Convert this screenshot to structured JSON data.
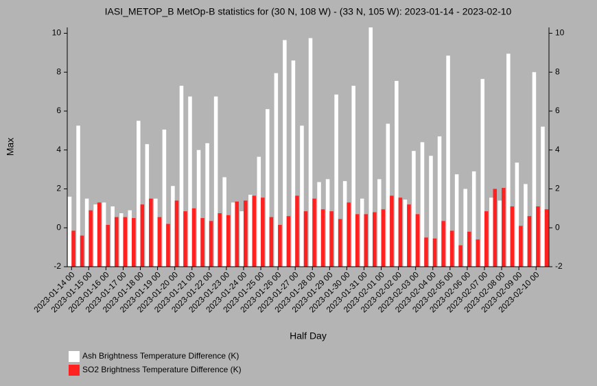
{
  "chart_data": {
    "type": "bar",
    "title": "IASI_METOP_B MetOp-B statistics for (30 N, 108 W) - (33 N, 105 W): 2023-01-14 - 2023-02-10",
    "x_label": "Half Day",
    "y_label": "Max",
    "categories": [
      "2023-01-14 00",
      null,
      "2023-01-15 00",
      null,
      "2023-01-16 00",
      null,
      "2023-01-17 00",
      null,
      "2023-01-18 00",
      null,
      "2023-01-19 00",
      null,
      "2023-01-20 00",
      null,
      "2023-01-21 00",
      null,
      "2023-01-22 00",
      null,
      "2023-01-23 00",
      null,
      "2023-01-24 00",
      null,
      "2023-01-25 00",
      null,
      "2023-01-26 00",
      null,
      "2023-01-27 00",
      null,
      "2023-01-28 00",
      null,
      "2023-01-29 00",
      null,
      "2023-01-30 00",
      null,
      "2023-01-31 00",
      null,
      "2023-02-01 00",
      null,
      "2023-02-02 00",
      null,
      "2023-02-03 00",
      null,
      "2023-02-04 00",
      null,
      "2023-02-05 00",
      null,
      "2023-02-06 00",
      null,
      "2023-02-07 00",
      null,
      "2023-02-08 00",
      null,
      "2023-02-09 00",
      null,
      "2023-02-10 00",
      null
    ],
    "series": [
      {
        "name": "Ash Brightness Temperature Difference (K)",
        "color": "#ffffff",
        "values": [
          1.6,
          5.25,
          1.5,
          1.2,
          1.3,
          1.1,
          0.75,
          0.9,
          5.5,
          4.3,
          1.5,
          5.05,
          2.15,
          7.3,
          6.75,
          4.0,
          4.35,
          6.75,
          2.6,
          1.3,
          0.85,
          1.7,
          3.65,
          6.1,
          7.95,
          9.65,
          8.6,
          5.25,
          9.75,
          2.35,
          2.5,
          6.85,
          2.4,
          7.3,
          1.5,
          10.3,
          2.5,
          5.35,
          7.55,
          1.45,
          3.95,
          4.4,
          3.7,
          4.7,
          8.85,
          2.75,
          2.0,
          2.9,
          7.65,
          1.55,
          1.4,
          8.95,
          3.35,
          2.25,
          8.0,
          5.2
        ]
      },
      {
        "name": "SO2 Brightness Temperature Difference (K)",
        "color": "#ff2020",
        "values": [
          -0.15,
          -0.4,
          0.9,
          1.3,
          0.15,
          0.55,
          0.55,
          0.5,
          1.2,
          1.5,
          0.55,
          0.2,
          1.4,
          0.85,
          1.0,
          0.5,
          0.35,
          0.75,
          0.65,
          1.35,
          1.4,
          1.65,
          1.55,
          0.55,
          0.15,
          0.6,
          1.65,
          0.85,
          1.5,
          0.95,
          0.85,
          0.45,
          1.3,
          0.7,
          0.7,
          0.8,
          0.95,
          1.65,
          1.55,
          1.2,
          0.7,
          -0.5,
          -0.55,
          0.35,
          -0.15,
          -0.9,
          -0.2,
          -0.6,
          0.85,
          2.0,
          2.05,
          1.1,
          0.1,
          0.6,
          1.1,
          0.95
        ]
      }
    ],
    "ylim": [
      -2,
      10.3
    ],
    "yticks": [
      -2,
      0,
      2,
      4,
      6,
      8,
      10
    ]
  }
}
